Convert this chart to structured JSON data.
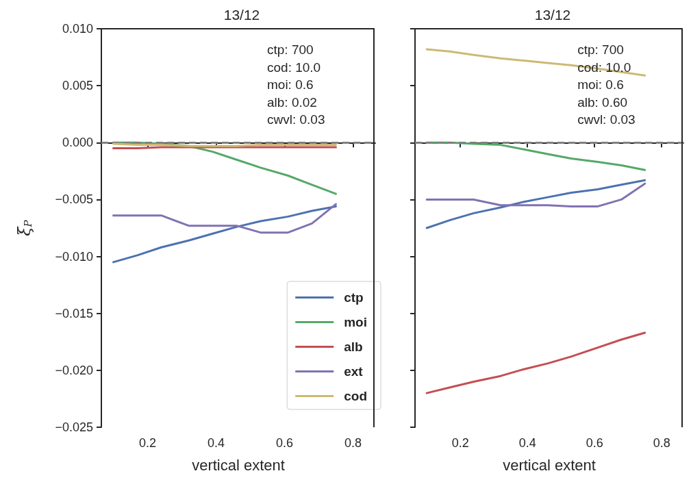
{
  "chart_data": [
    {
      "type": "line",
      "title": "13/12",
      "xlabel": "vertical extent",
      "ylabel": "ξ$_{P}$",
      "x": [
        0.1,
        0.17,
        0.24,
        0.32,
        0.39,
        0.46,
        0.53,
        0.61,
        0.68,
        0.75
      ],
      "series": [
        {
          "name": "ctp",
          "color": "#4c72b0",
          "values": [
            -0.0105,
            -0.0099,
            -0.0092,
            -0.0086,
            -0.008,
            -0.0074,
            -0.0069,
            -0.0065,
            -0.006,
            -0.0056
          ]
        },
        {
          "name": "moi",
          "color": "#55a868",
          "values": [
            0,
            0,
            -0.0001,
            -0.0003,
            -0.0008,
            -0.0015,
            -0.0022,
            -0.0029,
            -0.0037,
            -0.0045
          ]
        },
        {
          "name": "alb",
          "color": "#c44e52",
          "values": [
            -0.0005,
            -0.0005,
            -0.0004,
            -0.0004,
            -0.0004,
            -0.0004,
            -0.0004,
            -0.0004,
            -0.0004,
            -0.0004
          ]
        },
        {
          "name": "ext",
          "color": "#8172b2",
          "values": [
            -0.0064,
            -0.0064,
            -0.0064,
            -0.0073,
            -0.0073,
            -0.0073,
            -0.0079,
            -0.0079,
            -0.0071,
            -0.0054
          ]
        },
        {
          "name": "cod",
          "color": "#ccb974",
          "values": [
            -0.0001,
            -0.0002,
            -0.0002,
            -0.0003,
            -0.0003,
            -0.0003,
            -0.0002,
            -0.0002,
            -0.0002,
            -0.0002
          ]
        }
      ],
      "xlim": [
        0.065,
        0.865
      ],
      "xticks": [
        0.2,
        0.4,
        0.6,
        0.8
      ],
      "ylim": [
        -0.025,
        0.01
      ],
      "yticks": [
        {
          "value": -0.025,
          "label": "−0.025"
        },
        {
          "value": -0.02,
          "label": "−0.020"
        },
        {
          "value": -0.015,
          "label": "−0.015"
        },
        {
          "value": -0.01,
          "label": "−0.010"
        },
        {
          "value": -0.005,
          "label": "−0.005"
        },
        {
          "value": 0,
          "label": "0.000"
        },
        {
          "value": 0.005,
          "label": "0.005"
        },
        {
          "value": 0.01,
          "label": "0.010"
        }
      ],
      "annotations": [
        "ctp: 700",
        "cod: 10.0",
        "moi: 0.6",
        "alb: 0.02",
        "cwvl: 0.03"
      ],
      "ref_lines": [
        {
          "axis": "y",
          "value": 0,
          "color": "#808080",
          "line_style": "dashed"
        }
      ],
      "legend": "bottom right",
      "grid": false,
      "marker": "none"
    },
    {
      "type": "line",
      "title": "13/12",
      "xlabel": "vertical extent",
      "x": [
        0.1,
        0.17,
        0.24,
        0.32,
        0.39,
        0.46,
        0.53,
        0.61,
        0.68,
        0.75
      ],
      "series": [
        {
          "color": "#4c72b0",
          "values": [
            -0.0075,
            -0.0068,
            -0.0062,
            -0.0057,
            -0.0052,
            -0.0048,
            -0.0044,
            -0.0041,
            -0.0037,
            -0.0033
          ]
        },
        {
          "color": "#55a868",
          "values": [
            0,
            0,
            -0.0001,
            -0.0002,
            -0.0006,
            -0.001,
            -0.0014,
            -0.0017,
            -0.002,
            -0.0024
          ]
        },
        {
          "color": "#c44e52",
          "values": [
            -0.022,
            -0.0215,
            -0.021,
            -0.0205,
            -0.0199,
            -0.0194,
            -0.0188,
            -0.018,
            -0.0173,
            -0.0167
          ]
        },
        {
          "color": "#8172b2",
          "values": [
            -0.005,
            -0.005,
            -0.005,
            -0.0055,
            -0.0055,
            -0.0055,
            -0.0056,
            -0.0056,
            -0.005,
            -0.0036
          ]
        },
        {
          "color": "#ccb974",
          "values": [
            0.0082,
            0.008,
            0.0077,
            0.0074,
            0.0072,
            0.007,
            0.0068,
            0.0065,
            0.0062,
            0.0059
          ]
        }
      ],
      "xlim": [
        0.065,
        0.865
      ],
      "xticks": [
        0.2,
        0.4,
        0.6,
        0.8
      ],
      "ylim": [
        -0.025,
        0.01
      ],
      "yticks": [
        -0.025,
        -0.02,
        -0.015,
        -0.01,
        -0.005,
        0,
        0.005,
        0.01
      ],
      "annotations": [
        "ctp: 700",
        "cod: 10.0",
        "moi: 0.6",
        "alb: 0.60",
        "cwvl: 0.03"
      ],
      "ref_lines": [
        {
          "axis": "y",
          "value": 0,
          "color": "#808080",
          "line_style": "dashed"
        }
      ],
      "tick_labels": "x",
      "legend": false,
      "grid": false,
      "marker": "none"
    }
  ]
}
